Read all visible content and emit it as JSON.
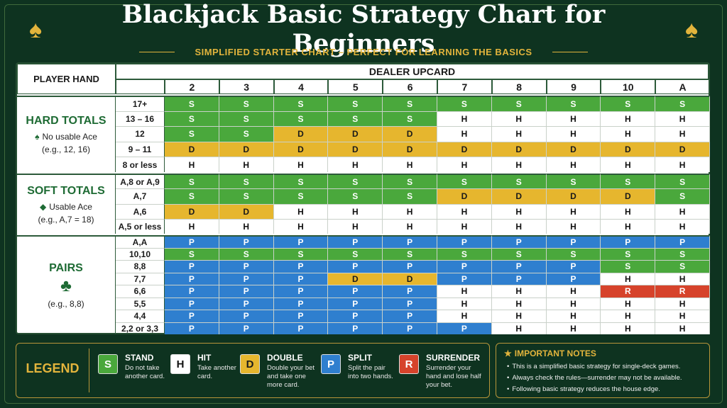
{
  "header": {
    "title": "Blackjack Basic Strategy Chart for Beginners",
    "subtitle": "SIMPLIFIED STARTER CHART – PERFECT FOR LEARNING THE BASICS"
  },
  "table": {
    "corner": "PLAYER HAND",
    "dealer_label": "DEALER UPCARD",
    "columns": [
      "2",
      "3",
      "4",
      "5",
      "6",
      "7",
      "8",
      "9",
      "10",
      "A"
    ],
    "groups": [
      {
        "title": "HARD TOTALS",
        "note": "No usable Ace",
        "example": "(e.g., 12, 16)",
        "rows": [
          {
            "hand": "17+",
            "cells": [
              "S",
              "S",
              "S",
              "S",
              "S",
              "S",
              "S",
              "S",
              "S",
              "S"
            ]
          },
          {
            "hand": "13 – 16",
            "cells": [
              "S",
              "S",
              "S",
              "S",
              "S",
              "H",
              "H",
              "H",
              "H",
              "H"
            ]
          },
          {
            "hand": "12",
            "cells": [
              "S",
              "S",
              "D",
              "D",
              "D",
              "H",
              "H",
              "H",
              "H",
              "H"
            ]
          },
          {
            "hand": "9 – 11",
            "cells": [
              "D",
              "D",
              "D",
              "D",
              "D",
              "D",
              "D",
              "D",
              "D",
              "D"
            ]
          },
          {
            "hand": "8 or less",
            "cells": [
              "H",
              "H",
              "H",
              "H",
              "H",
              "H",
              "H",
              "H",
              "H",
              "H"
            ]
          }
        ]
      },
      {
        "title": "SOFT TOTALS",
        "note": "Usable Ace",
        "example": "(e.g., A,7 = 18)",
        "rows": [
          {
            "hand": "A,8 or A,9",
            "cells": [
              "S",
              "S",
              "S",
              "S",
              "S",
              "S",
              "S",
              "S",
              "S",
              "S"
            ]
          },
          {
            "hand": "A,7",
            "cells": [
              "S",
              "S",
              "S",
              "S",
              "S",
              "D",
              "D",
              "D",
              "D",
              "S"
            ]
          },
          {
            "hand": "A,6",
            "cells": [
              "D",
              "D",
              "H",
              "H",
              "H",
              "H",
              "H",
              "H",
              "H",
              "H"
            ]
          },
          {
            "hand": "A,5 or less",
            "cells": [
              "H",
              "H",
              "H",
              "H",
              "H",
              "H",
              "H",
              "H",
              "H",
              "H"
            ]
          }
        ]
      },
      {
        "title": "PAIRS",
        "example": "(e.g., 8,8)",
        "rows": [
          {
            "hand": "A,A",
            "cells": [
              "P",
              "P",
              "P",
              "P",
              "P",
              "P",
              "P",
              "P",
              "P",
              "P"
            ]
          },
          {
            "hand": "10,10",
            "cells": [
              "S",
              "S",
              "S",
              "S",
              "S",
              "S",
              "S",
              "S",
              "S",
              "S"
            ]
          },
          {
            "hand": "8,8",
            "cells": [
              "P",
              "P",
              "P",
              "P",
              "P",
              "P",
              "P",
              "P",
              "S",
              "S"
            ]
          },
          {
            "hand": "7,7",
            "cells": [
              "P",
              "P",
              "P",
              "D",
              "D",
              "P",
              "P",
              "P",
              "H",
              "H"
            ]
          },
          {
            "hand": "6,6",
            "cells": [
              "P",
              "P",
              "P",
              "P",
              "P",
              "H",
              "H",
              "H",
              "R",
              "R"
            ]
          },
          {
            "hand": "5,5",
            "cells": [
              "P",
              "P",
              "P",
              "P",
              "P",
              "H",
              "H",
              "H",
              "H",
              "H"
            ]
          },
          {
            "hand": "4,4",
            "cells": [
              "P",
              "P",
              "P",
              "P",
              "P",
              "H",
              "H",
              "H",
              "H",
              "H"
            ]
          },
          {
            "hand": "2,2 or 3,3",
            "cells": [
              "P",
              "P",
              "P",
              "P",
              "P",
              "P",
              "H",
              "H",
              "H",
              "H"
            ]
          }
        ]
      }
    ]
  },
  "legend": {
    "title": "LEGEND",
    "items": [
      {
        "letter": "S",
        "name": "STAND",
        "description": "Do not take another card.",
        "color": "#4aa83c",
        "text_color": "#ffffff"
      },
      {
        "letter": "H",
        "name": "HIT",
        "description": "Take another card.",
        "color": "#ffffff",
        "text_color": "#111111"
      },
      {
        "letter": "D",
        "name": "DOUBLE",
        "description": "Double your bet and take one more card.",
        "color": "#e6b62e",
        "text_color": "#1a1a1a"
      },
      {
        "letter": "P",
        "name": "SPLIT",
        "description": "Split the pair into two hands.",
        "color": "#2f7fcf",
        "text_color": "#ffffff"
      },
      {
        "letter": "R",
        "name": "SURRENDER",
        "description": "Surrender your hand and lose half your bet.",
        "color": "#d6432b",
        "text_color": "#ffffff"
      }
    ]
  },
  "notes": {
    "title": "IMPORTANT NOTES",
    "items": [
      "This is a simplified basic strategy for single-deck games.",
      "Always check the rules—surrender may not be available.",
      "Following basic strategy reduces the house edge."
    ]
  }
}
